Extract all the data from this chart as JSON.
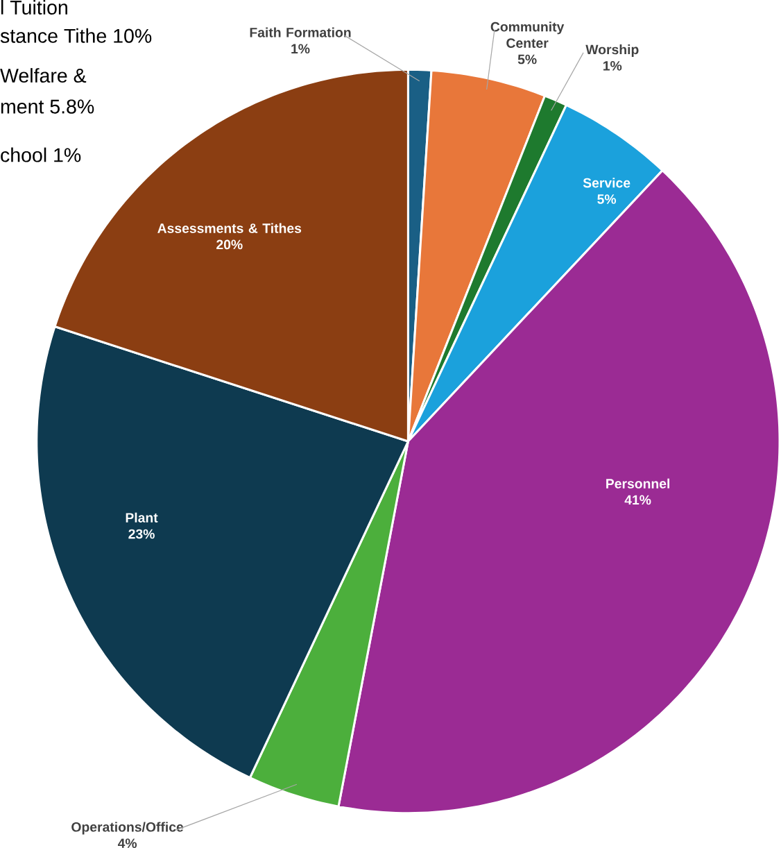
{
  "chart_data": {
    "type": "pie",
    "categories": [
      "Faith Formation",
      "Community Center",
      "Worship",
      "Service",
      "Personnel",
      "Operations/Office",
      "Plant",
      "Assessments & Tithes"
    ],
    "values": [
      1,
      5,
      1,
      5,
      41,
      4,
      23,
      20
    ],
    "value_labels": [
      "1%",
      "5%",
      "1%",
      "5%",
      "41%",
      "4%",
      "23%",
      "20%"
    ],
    "colors": [
      "#1a5f85",
      "#e8773a",
      "#1e7a2e",
      "#1ba1dc",
      "#9b2b94",
      "#4caf3c",
      "#0e3a50",
      "#8b3e12"
    ],
    "annotations": [
      "l Tuition",
      "stance Tithe 10%",
      "Welfare &",
      "ment 5.8%",
      "chool 1%"
    ]
  }
}
